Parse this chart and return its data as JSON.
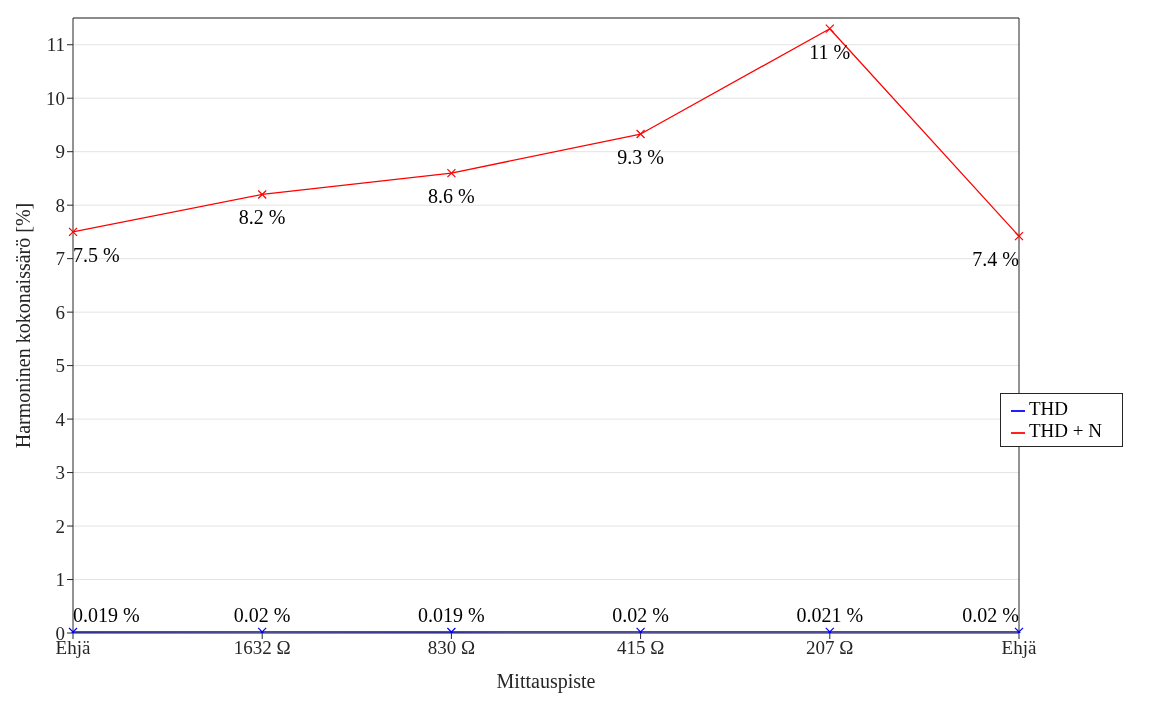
{
  "chart_data": {
    "type": "line",
    "xlabel": "Mittauspiste",
    "ylabel": "Harmoninen kokonaissärö [%]",
    "categories": [
      "Ehjä",
      "1632 Ω",
      "830 Ω",
      "415 Ω",
      "207 Ω",
      "Ehjä"
    ],
    "series": [
      {
        "name": "THD",
        "color": "#0000ff",
        "values": [
          0.019,
          0.02,
          0.019,
          0.02,
          0.021,
          0.02
        ],
        "value_labels": [
          "0.019 %",
          "0.02 %",
          "0.019 %",
          "0.02 %",
          "0.021 %",
          "0.02 %"
        ]
      },
      {
        "name": "THD + N",
        "color": "#ff0000",
        "values": [
          7.5,
          8.2,
          8.6,
          9.33,
          11.3,
          7.42
        ],
        "value_labels": [
          "7.5 %",
          "8.2 %",
          "8.6 %",
          "9.3 %",
          "11 %",
          "7.4 %"
        ]
      }
    ],
    "ylim": [
      0,
      11.5
    ],
    "yticks": [
      0,
      1,
      2,
      3,
      4,
      5,
      6,
      7,
      8,
      9,
      10,
      11
    ],
    "grid": "y",
    "legend": "right",
    "marker": "cross",
    "line_style": "solid"
  }
}
